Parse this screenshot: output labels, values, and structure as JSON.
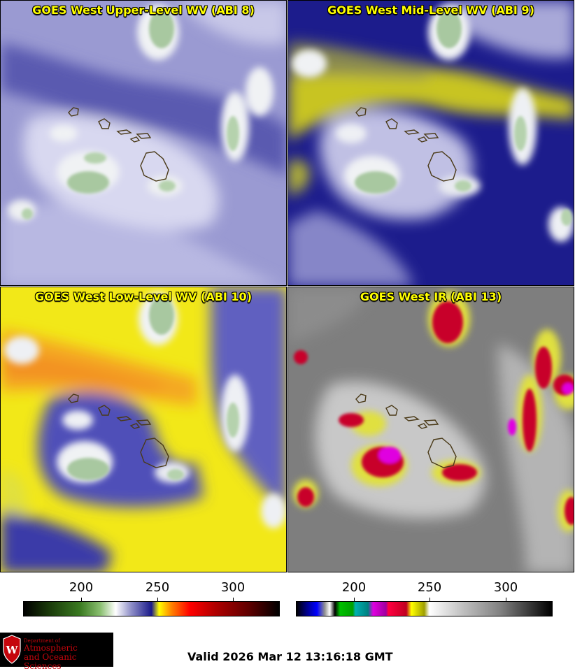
{
  "panels": [
    {
      "id": "p1",
      "title": "GOES West Upper-Level WV (ABI 8)",
      "scheme": "upper-wv"
    },
    {
      "id": "p2",
      "title": "GOES West Mid-Level WV (ABI 9)",
      "scheme": "mid-wv"
    },
    {
      "id": "p3",
      "title": "GOES West Low-Level WV (ABI 10)",
      "scheme": "low-wv"
    },
    {
      "id": "p4",
      "title": "GOES West IR (ABI 13)",
      "scheme": "ir"
    }
  ],
  "colorbars": [
    {
      "name": "wv-colorbar",
      "ticks": [
        "200",
        "250",
        "300"
      ],
      "tick_values": [
        200,
        250,
        300
      ],
      "range": [
        160,
        330
      ]
    },
    {
      "name": "ir-colorbar",
      "ticks": [
        "200",
        "250",
        "300"
      ],
      "tick_values": [
        200,
        250,
        300
      ],
      "range": [
        160,
        330
      ]
    }
  ],
  "logo": {
    "line1": "Department of",
    "line2": "Atmospheric",
    "line3": "and Oceanic Sciences",
    "seal_icon": "uw-crest-icon"
  },
  "valid_time": "Valid 2026 Mar 12 13:16:18 GMT"
}
